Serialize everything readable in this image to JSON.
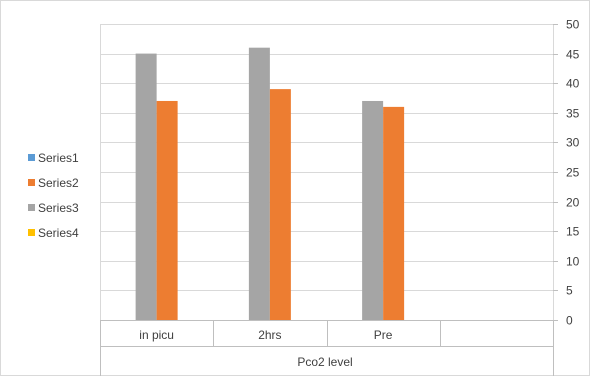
{
  "chart_data": {
    "type": "bar",
    "categories": [
      "in picu",
      "2hrs",
      "Pre"
    ],
    "xlabel": "Pco2 level",
    "ylim": [
      0,
      50
    ],
    "yticks": [
      0,
      5,
      10,
      15,
      20,
      25,
      30,
      35,
      40,
      45,
      50
    ],
    "y_axis_side": "right",
    "grid": true,
    "legend_position": "left",
    "series": [
      {
        "name": "Series1",
        "color": "#5B9BD5",
        "values": [
          0,
          0,
          0
        ]
      },
      {
        "name": "Series2",
        "color": "#ED7D31",
        "values": [
          37,
          39,
          36
        ]
      },
      {
        "name": "Series3",
        "color": "#A5A5A5",
        "values": [
          45,
          46,
          37
        ]
      },
      {
        "name": "Series4",
        "color": "#FFC000",
        "values": [
          0,
          0,
          0
        ]
      }
    ]
  }
}
